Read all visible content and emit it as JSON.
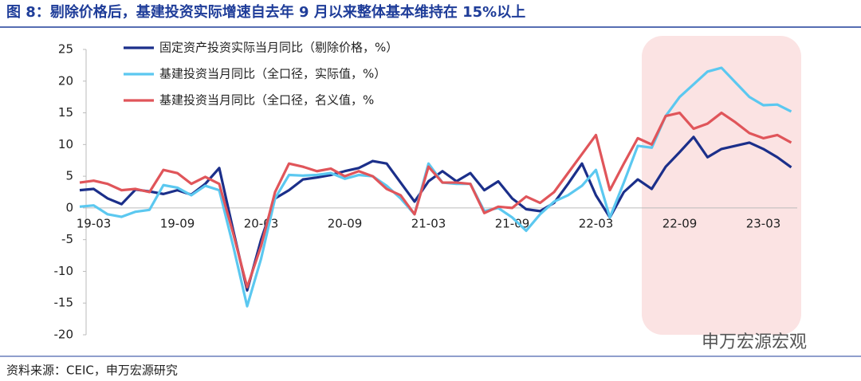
{
  "chart_data": {
    "type": "line",
    "title": "图 8：剔除价格后，基建投资实际增速自去年 9 月以来整体基本维持在 15%以上",
    "source": "资料来源：CEIC，申万宏源研究",
    "watermark": "申万宏源宏观",
    "categories": [
      null,
      "19-03",
      null,
      null,
      null,
      null,
      null,
      "19-09",
      null,
      null,
      null,
      null,
      null,
      "20-03",
      null,
      null,
      null,
      null,
      null,
      "20-09",
      null,
      null,
      null,
      null,
      null,
      "21-03",
      null,
      null,
      null,
      null,
      null,
      "21-09",
      null,
      null,
      null,
      null,
      null,
      "22-03",
      null,
      null,
      null,
      null,
      null,
      "22-09",
      null,
      null,
      null,
      null,
      null,
      "23-03",
      null,
      null
    ],
    "ylim": [
      -20,
      25
    ],
    "yticks": [
      25,
      20,
      15,
      10,
      5,
      0,
      -5,
      -10,
      -15,
      -20
    ],
    "series": [
      {
        "name": "固定资产投资实际当月同比（剔除价格，%）",
        "color": "#1b2f8a",
        "values": [
          2.8,
          3.0,
          1.5,
          0.6,
          2.9,
          2.6,
          2.2,
          2.8,
          2.1,
          3.8,
          6.3,
          -3.5,
          -13.0,
          -5.0,
          1.5,
          2.8,
          4.5,
          4.8,
          5.2,
          5.8,
          6.3,
          7.4,
          7.0,
          4.0,
          1.0,
          4.2,
          5.8,
          4.2,
          5.5,
          2.8,
          4.2,
          1.5,
          -0.2,
          -0.5,
          0.8,
          3.8,
          7.0,
          2.0,
          -1.5,
          2.5,
          4.5,
          3.0,
          6.5,
          8.8,
          11.2,
          8.0,
          9.3,
          9.8,
          10.3,
          9.3,
          8.0,
          6.4
        ]
      },
      {
        "name": "基建投资当月同比（全口径，实际值，%）",
        "color": "#5bc8f0",
        "values": [
          0.2,
          0.4,
          -1.0,
          -1.4,
          -0.6,
          -0.3,
          3.6,
          3.2,
          2.0,
          3.5,
          2.8,
          -6.0,
          -15.5,
          -8.0,
          1.5,
          5.2,
          5.1,
          5.2,
          5.5,
          4.6,
          5.2,
          5.0,
          3.5,
          1.5,
          -1.0,
          7.0,
          4.0,
          3.8,
          3.8,
          -0.5,
          0.0,
          -1.5,
          -3.6,
          -1.0,
          1.0,
          2.0,
          3.5,
          6.0,
          -1.5,
          4.0,
          9.8,
          9.5,
          14.5,
          17.5,
          19.5,
          21.5,
          22.1,
          19.8,
          17.5,
          16.2,
          16.3,
          15.2
        ]
      },
      {
        "name": "基建投资当月同比（全口径，名义值，%",
        "color": "#e0555a",
        "values": [
          4.0,
          4.3,
          3.8,
          2.8,
          3.0,
          2.5,
          6.0,
          5.5,
          3.8,
          4.9,
          3.8,
          -4.0,
          -12.5,
          -6.0,
          2.5,
          7.0,
          6.5,
          5.8,
          6.2,
          5.0,
          5.8,
          5.0,
          3.0,
          2.0,
          -1.0,
          6.5,
          4.0,
          4.0,
          3.8,
          -0.8,
          0.2,
          0.0,
          1.8,
          0.8,
          2.5,
          5.5,
          8.5,
          11.5,
          2.8,
          7.0,
          11.0,
          10.0,
          14.5,
          15.0,
          12.5,
          13.3,
          15.0,
          13.5,
          11.8,
          11.0,
          11.5,
          10.3
        ]
      }
    ]
  }
}
